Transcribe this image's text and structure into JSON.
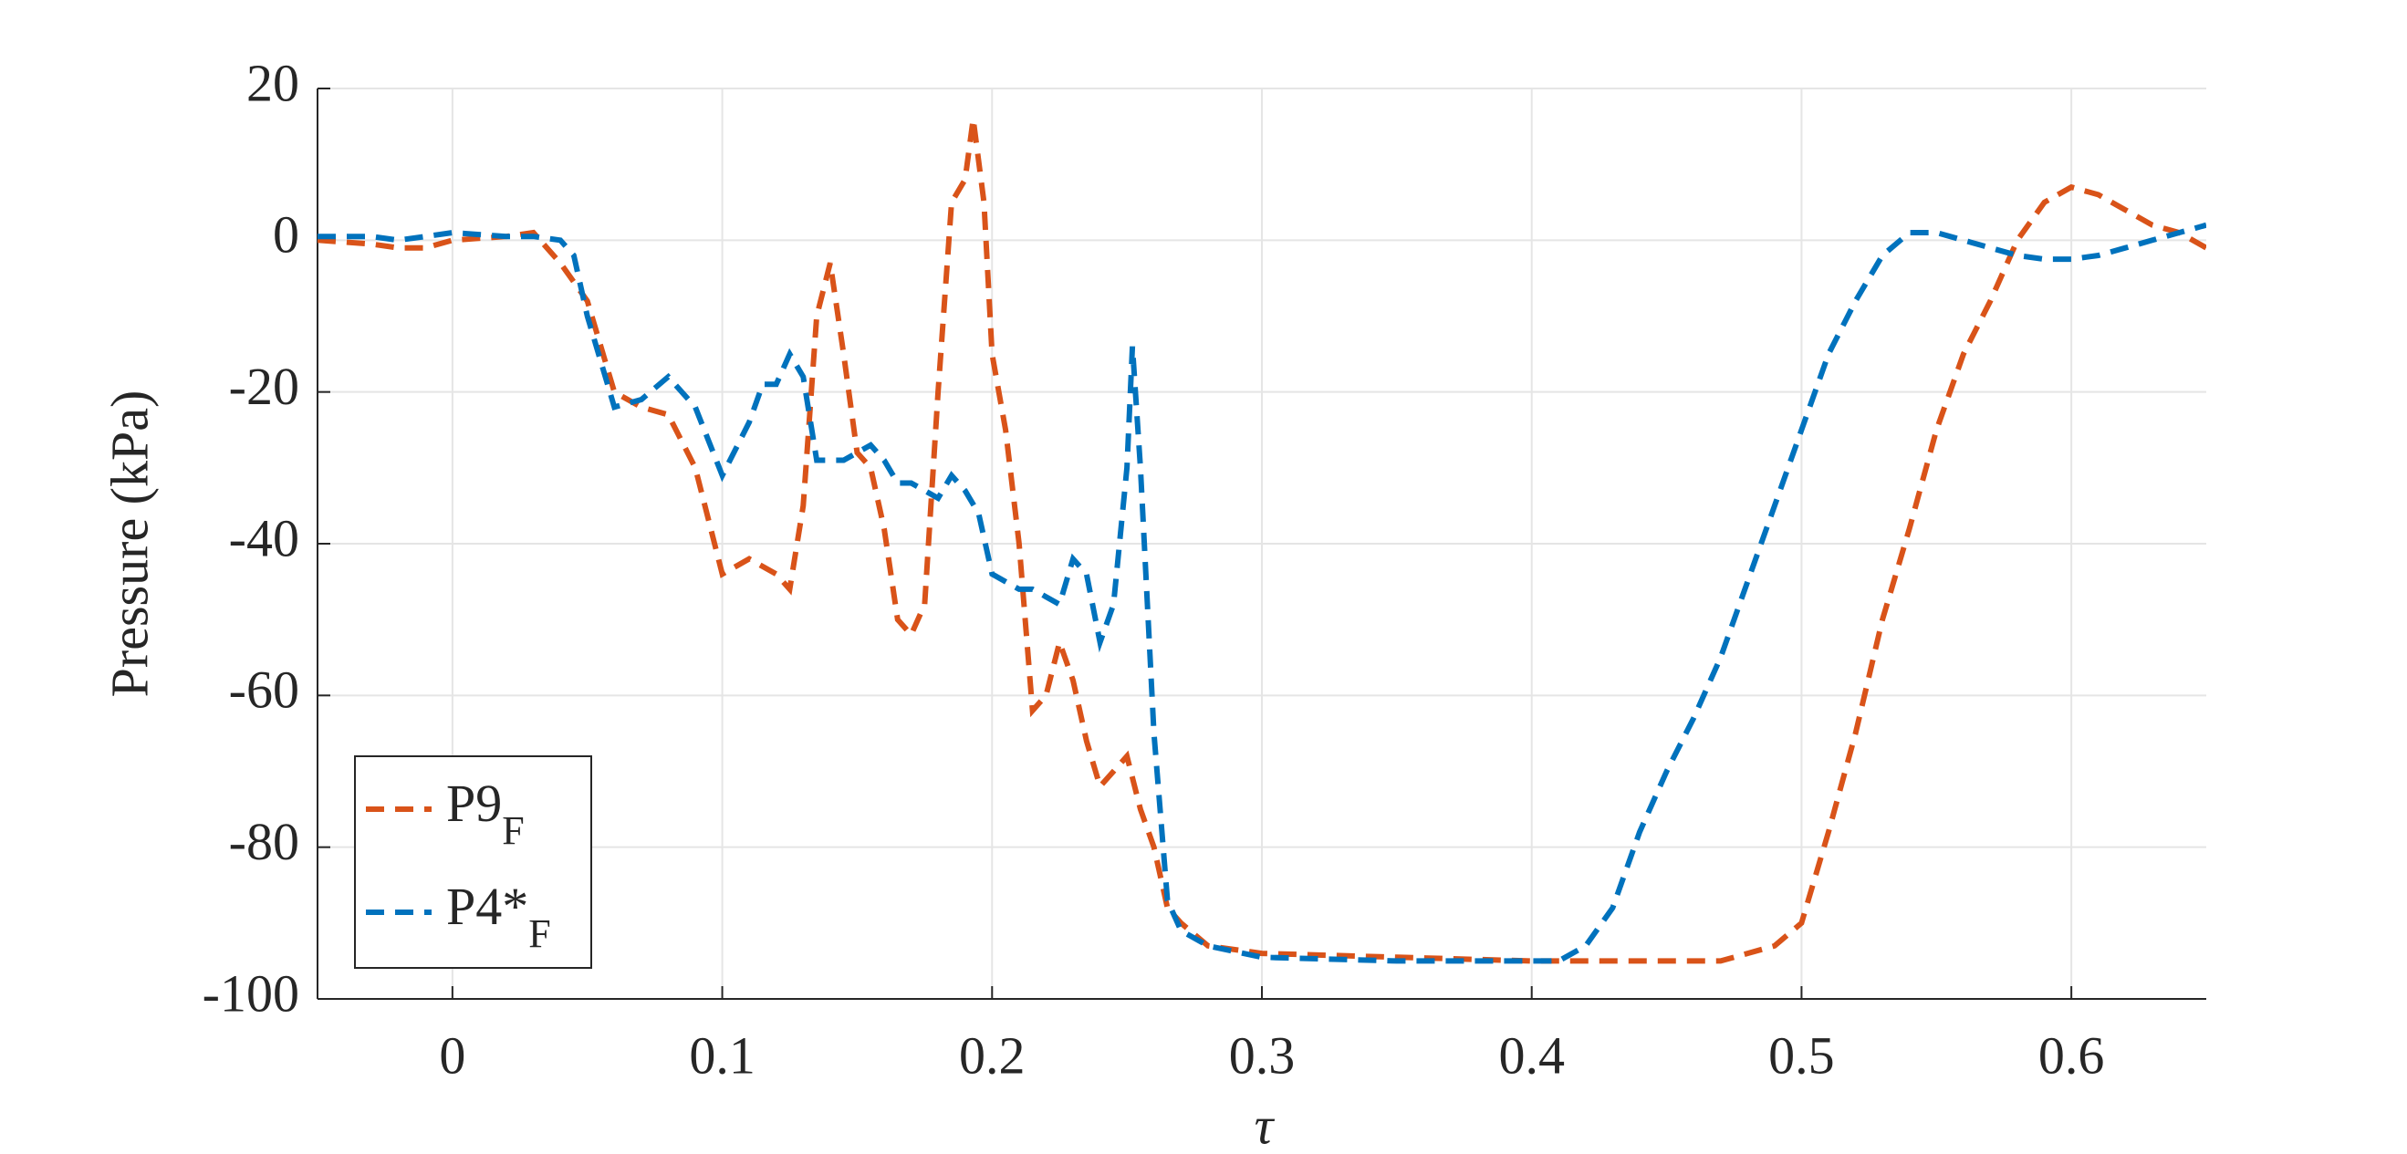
{
  "chart_data": {
    "type": "line",
    "xlabel": "τ",
    "ylabel": "Pressure (kPa)",
    "xlim": [
      -0.05,
      0.65
    ],
    "ylim": [
      -100,
      20
    ],
    "xticks": [
      0,
      0.1,
      0.2,
      0.3,
      0.4,
      0.5,
      0.6
    ],
    "yticks": [
      -100,
      -80,
      -60,
      -40,
      -20,
      0,
      20
    ],
    "grid": true,
    "legend_loc": "lower left",
    "series": [
      {
        "name": "P9",
        "subscript": "F",
        "color": "#D95319",
        "x": [
          -0.05,
          -0.03,
          -0.02,
          -0.01,
          0,
          0.02,
          0.03,
          0.04,
          0.05,
          0.06,
          0.07,
          0.08,
          0.09,
          0.1,
          0.11,
          0.12,
          0.125,
          0.13,
          0.135,
          0.14,
          0.145,
          0.15,
          0.155,
          0.16,
          0.165,
          0.17,
          0.175,
          0.18,
          0.185,
          0.19,
          0.193,
          0.197,
          0.2,
          0.205,
          0.21,
          0.215,
          0.22,
          0.225,
          0.23,
          0.235,
          0.24,
          0.245,
          0.25,
          0.255,
          0.26,
          0.265,
          0.27,
          0.28,
          0.3,
          0.35,
          0.4,
          0.45,
          0.47,
          0.48,
          0.49,
          0.5,
          0.51,
          0.52,
          0.53,
          0.54,
          0.55,
          0.56,
          0.57,
          0.58,
          0.59,
          0.6,
          0.61,
          0.62,
          0.63,
          0.64,
          0.65
        ],
        "values": [
          0,
          -0.5,
          -1,
          -1,
          0,
          0.5,
          1,
          -3,
          -8,
          -20,
          -22,
          -23,
          -30,
          -44,
          -42,
          -44,
          -46,
          -35,
          -10,
          -3,
          -15,
          -28,
          -30,
          -38,
          -50,
          -52,
          -48,
          -20,
          5,
          8,
          16,
          5,
          -15,
          -25,
          -40,
          -62,
          -60,
          -53,
          -58,
          -66,
          -72,
          -70,
          -68,
          -75,
          -80,
          -88,
          -90,
          -93,
          -94,
          -94.5,
          -95,
          -95,
          -95,
          -94,
          -93,
          -90,
          -78,
          -65,
          -50,
          -38,
          -25,
          -15,
          -8,
          0,
          5,
          7,
          6,
          4,
          2,
          1,
          -1
        ]
      },
      {
        "name": "P4*",
        "subscript": "F",
        "color": "#0072BD",
        "x": [
          -0.05,
          -0.03,
          -0.02,
          -0.01,
          0,
          0.02,
          0.03,
          0.04,
          0.045,
          0.05,
          0.06,
          0.07,
          0.08,
          0.09,
          0.1,
          0.11,
          0.115,
          0.12,
          0.125,
          0.13,
          0.135,
          0.14,
          0.145,
          0.15,
          0.155,
          0.16,
          0.165,
          0.17,
          0.175,
          0.18,
          0.185,
          0.19,
          0.195,
          0.2,
          0.205,
          0.21,
          0.215,
          0.22,
          0.225,
          0.23,
          0.235,
          0.24,
          0.245,
          0.25,
          0.252,
          0.255,
          0.26,
          0.265,
          0.27,
          0.28,
          0.3,
          0.35,
          0.4,
          0.41,
          0.42,
          0.43,
          0.44,
          0.45,
          0.46,
          0.47,
          0.48,
          0.49,
          0.5,
          0.51,
          0.52,
          0.53,
          0.54,
          0.55,
          0.56,
          0.57,
          0.58,
          0.59,
          0.6,
          0.61,
          0.62,
          0.63,
          0.64,
          0.65
        ],
        "values": [
          0.5,
          0.5,
          0,
          0.5,
          1,
          0.5,
          0.5,
          0,
          -2,
          -10,
          -22,
          -21,
          -18,
          -22,
          -31,
          -24,
          -19,
          -19,
          -15,
          -18,
          -29,
          -29,
          -29,
          -28,
          -27,
          -29,
          -32,
          -32,
          -33,
          -34,
          -31,
          -33,
          -36,
          -44,
          -45,
          -46,
          -46,
          -47,
          -48,
          -42,
          -44,
          -53,
          -48,
          -30,
          -14,
          -30,
          -65,
          -87,
          -91,
          -93,
          -94.5,
          -95,
          -95,
          -95,
          -93,
          -88,
          -78,
          -70,
          -63,
          -55,
          -45,
          -35,
          -25,
          -15,
          -8,
          -2,
          1,
          1,
          0,
          -1,
          -2,
          -2.5,
          -2.5,
          -2,
          -1,
          0,
          1,
          2
        ]
      }
    ]
  }
}
